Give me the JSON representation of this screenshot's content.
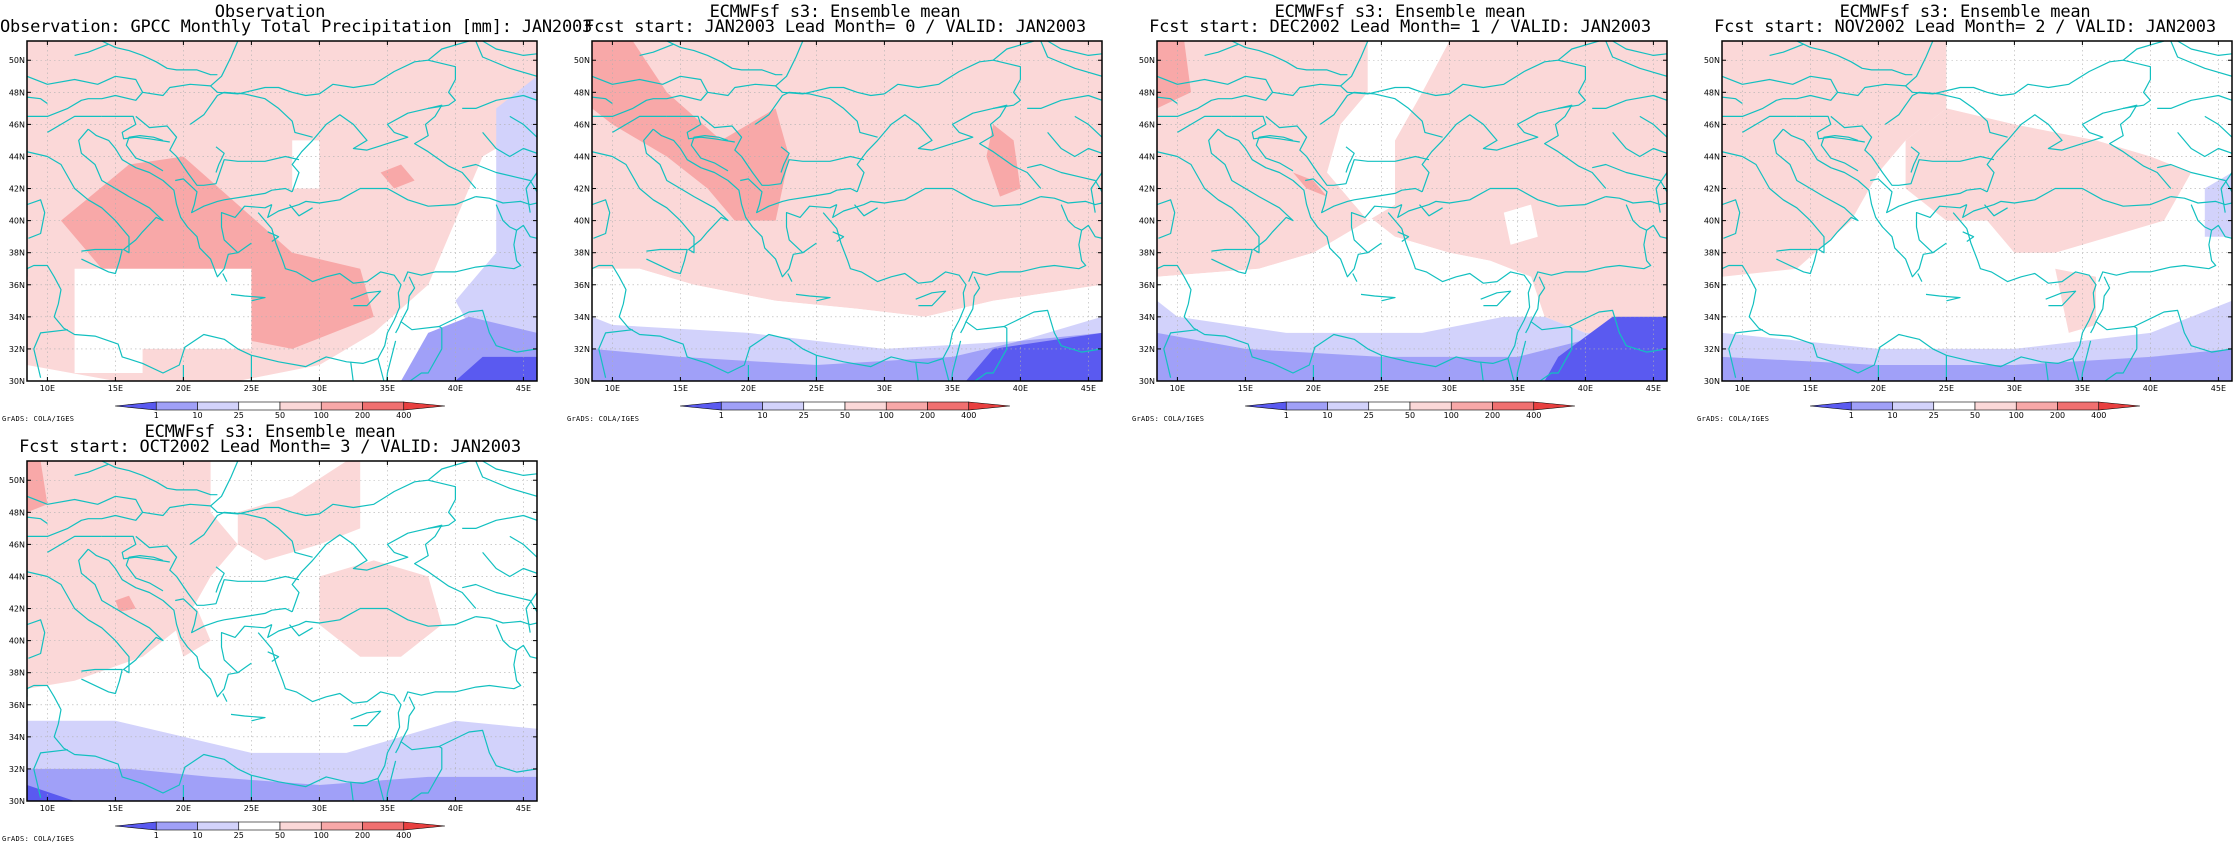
{
  "lon_ticks": [
    "10E",
    "15E",
    "20E",
    "25E",
    "30E",
    "35E",
    "40E",
    "45E"
  ],
  "lat_ticks": [
    "30N",
    "32N",
    "34N",
    "36N",
    "38N",
    "40N",
    "42N",
    "44N",
    "46N",
    "48N",
    "50N"
  ],
  "colorbar": {
    "levels": [
      "1",
      "10",
      "25",
      "50",
      "100",
      "200",
      "400"
    ],
    "colors": [
      "#5a5af0",
      "#a0a0f8",
      "#d2d2fb",
      "#ffffff",
      "#fbd8d8",
      "#f8a8a8",
      "#f07070",
      "#e84040"
    ]
  },
  "colors": {
    "coastline": "#12c0c0",
    "frame": "#000000",
    "grid": "#b0b0b0"
  },
  "credit": "GrADS: COLA/IGES",
  "panels": [
    {
      "id": "obs",
      "title1": "Observation",
      "title2": "Observation: GPCC Monthly Total Precipitation [mm]: JAN2003"
    },
    {
      "id": "lead0",
      "title1": "ECMWFsf s3: Ensemble mean",
      "title2": "Fcst start: JAN2003  Lead Month= 0 / VALID: JAN2003"
    },
    {
      "id": "lead1",
      "title1": "ECMWFsf s3: Ensemble mean",
      "title2": "Fcst start: DEC2002  Lead Month= 1 / VALID: JAN2003"
    },
    {
      "id": "lead2",
      "title1": "ECMWFsf s3: Ensemble mean",
      "title2": "Fcst start: NOV2002  Lead Month= 2 / VALID: JAN2003"
    },
    {
      "id": "lead3",
      "title1": "ECMWFsf s3: Ensemble mean",
      "title2": "Fcst start: OCT2002  Lead Month= 3 / VALID: JAN2003"
    }
  ]
}
